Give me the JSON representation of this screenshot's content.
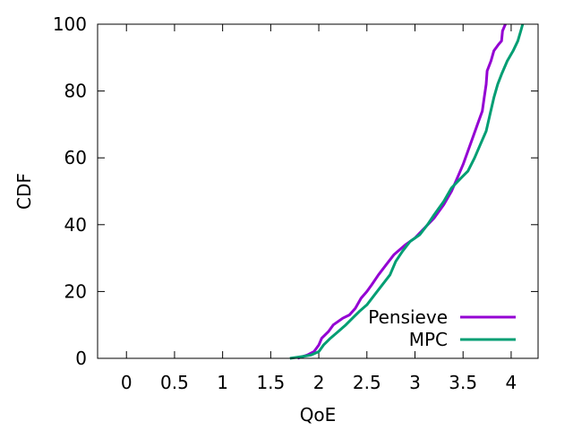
{
  "chart_data": {
    "type": "line",
    "xlabel": "QoE",
    "ylabel": "CDF",
    "xlim": [
      -0.3,
      4.28
    ],
    "ylim": [
      0,
      100
    ],
    "xticks": [
      0,
      0.5,
      1,
      1.5,
      2,
      2.5,
      3,
      3.5,
      4
    ],
    "xtick_labels": [
      "0",
      "0.5",
      "1",
      "1.5",
      "2",
      "2.5",
      "3",
      "3.5",
      "4"
    ],
    "yticks": [
      0,
      20,
      40,
      60,
      80,
      100
    ],
    "ytick_labels": [
      "0",
      "20",
      "40",
      "60",
      "80",
      "100"
    ],
    "grid": false,
    "legend_position": "bottom-right",
    "series": [
      {
        "name": "Pensieve",
        "color": "#9400d3",
        "points": [
          [
            1.78,
            0
          ],
          [
            1.88,
            1
          ],
          [
            1.95,
            2
          ],
          [
            2.0,
            4
          ],
          [
            2.03,
            6
          ],
          [
            2.1,
            8
          ],
          [
            2.15,
            10
          ],
          [
            2.25,
            12
          ],
          [
            2.32,
            13
          ],
          [
            2.38,
            15
          ],
          [
            2.44,
            18
          ],
          [
            2.5,
            20
          ],
          [
            2.55,
            22
          ],
          [
            2.62,
            25
          ],
          [
            2.7,
            28
          ],
          [
            2.78,
            31
          ],
          [
            2.9,
            34
          ],
          [
            3.0,
            36
          ],
          [
            3.1,
            39
          ],
          [
            3.2,
            42
          ],
          [
            3.3,
            46
          ],
          [
            3.38,
            50
          ],
          [
            3.44,
            54
          ],
          [
            3.5,
            58
          ],
          [
            3.55,
            62
          ],
          [
            3.6,
            66
          ],
          [
            3.65,
            70
          ],
          [
            3.7,
            74
          ],
          [
            3.72,
            78
          ],
          [
            3.74,
            82
          ],
          [
            3.75,
            86
          ],
          [
            3.79,
            89
          ],
          [
            3.82,
            92
          ],
          [
            3.87,
            94
          ],
          [
            3.9,
            95
          ],
          [
            3.91,
            98
          ],
          [
            3.94,
            100
          ]
        ]
      },
      {
        "name": "MPC",
        "color": "#009e73",
        "points": [
          [
            1.7,
            0
          ],
          [
            1.82,
            0.5
          ],
          [
            1.92,
            1
          ],
          [
            2.0,
            2
          ],
          [
            2.05,
            4
          ],
          [
            2.12,
            6
          ],
          [
            2.2,
            8
          ],
          [
            2.28,
            10
          ],
          [
            2.35,
            12
          ],
          [
            2.42,
            14
          ],
          [
            2.5,
            16
          ],
          [
            2.58,
            19
          ],
          [
            2.66,
            22
          ],
          [
            2.74,
            25
          ],
          [
            2.8,
            29
          ],
          [
            2.87,
            32
          ],
          [
            2.95,
            35
          ],
          [
            3.05,
            37
          ],
          [
            3.13,
            40
          ],
          [
            3.2,
            43
          ],
          [
            3.3,
            47
          ],
          [
            3.38,
            51
          ],
          [
            3.48,
            54
          ],
          [
            3.55,
            56
          ],
          [
            3.62,
            60
          ],
          [
            3.68,
            64
          ],
          [
            3.74,
            68
          ],
          [
            3.78,
            73
          ],
          [
            3.82,
            78
          ],
          [
            3.86,
            82
          ],
          [
            3.9,
            85
          ],
          [
            3.96,
            89
          ],
          [
            4.02,
            92
          ],
          [
            4.07,
            95
          ],
          [
            4.1,
            98
          ],
          [
            4.12,
            100
          ]
        ]
      }
    ]
  }
}
